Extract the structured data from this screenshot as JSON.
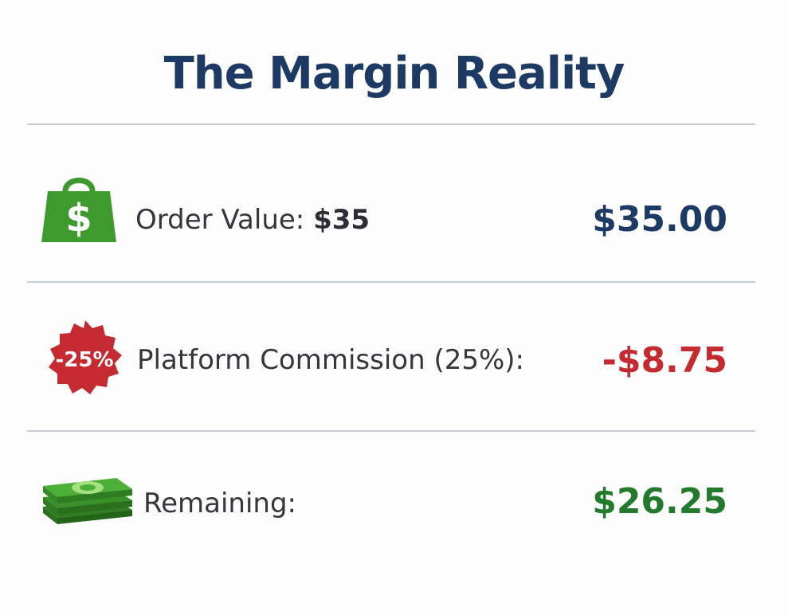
{
  "title": "The Margin Reality",
  "rows": [
    {
      "icon": "shopping-bag-dollar-icon",
      "label_prefix": "Order Value: ",
      "label_value": "$35",
      "amount": "$35.00"
    },
    {
      "icon": "discount-badge-icon",
      "badge_text": "-25%",
      "label_prefix": "Platform Commission (25%):",
      "amount": "-$8.75"
    },
    {
      "icon": "cash-stack-icon",
      "label_prefix": "Remaining:",
      "amount": "$26.25"
    }
  ],
  "colors": {
    "title": "#1c3a64",
    "positive_amount": "#1c3a64",
    "negative_amount": "#c42a2f",
    "remaining_amount": "#237a2c",
    "icon_green": "#3f9a2e",
    "badge_red": "#c42a2f"
  }
}
